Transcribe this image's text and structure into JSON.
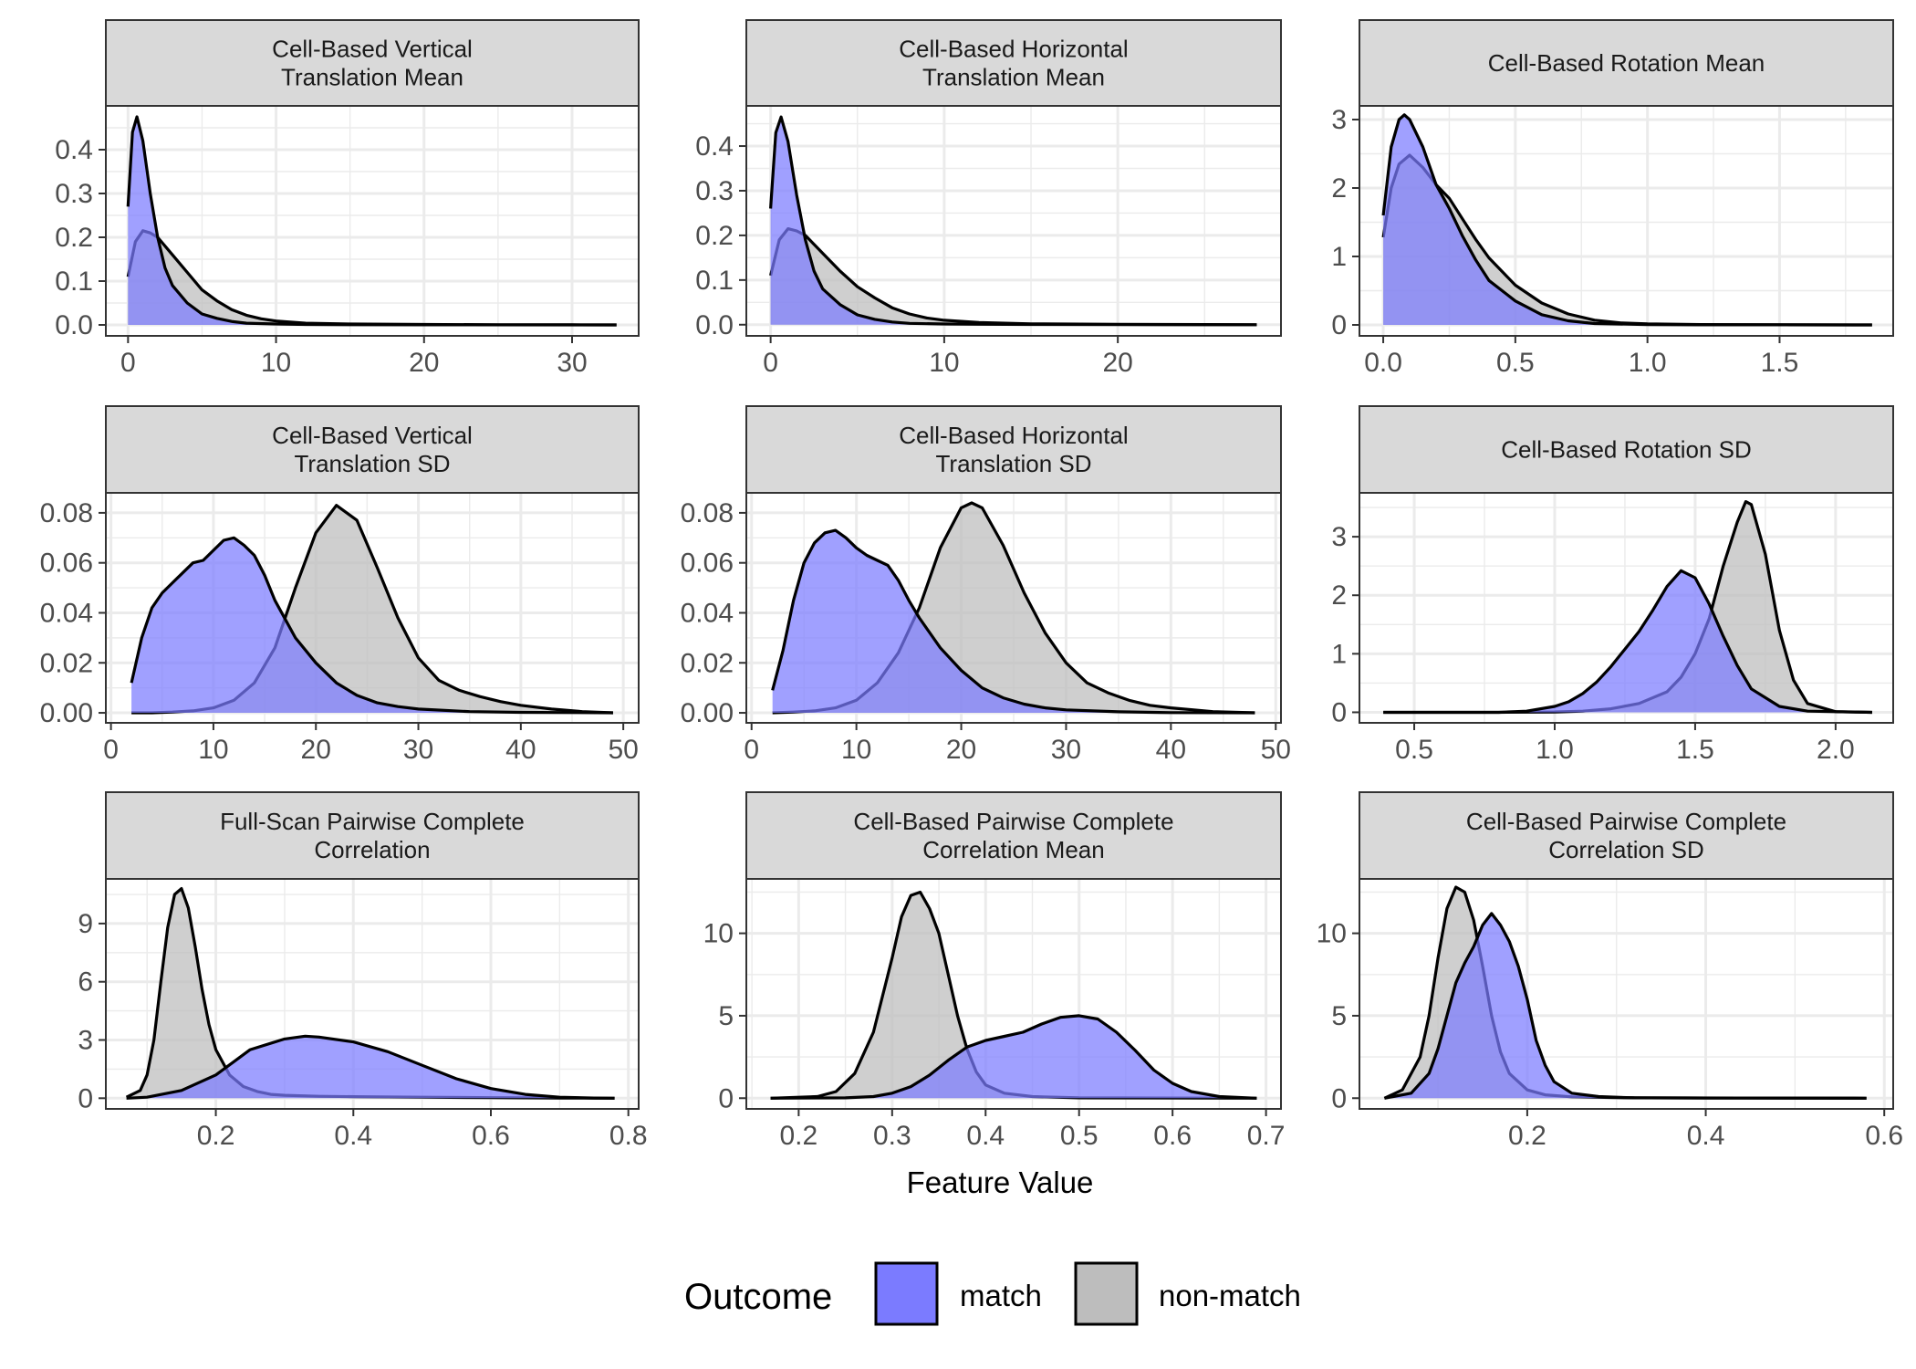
{
  "chart_data": [
    {
      "type": "area",
      "title": "Cell-Based Vertical\nTranslation Mean",
      "x_ticks": [
        0,
        10,
        20,
        30
      ],
      "y_ticks": [
        0.0,
        0.1,
        0.2,
        0.3,
        0.4
      ],
      "y_tick_labels": [
        "0.0",
        "0.1",
        "0.2",
        "0.3",
        "0.4"
      ],
      "xlim": [
        -1.5,
        34.5
      ],
      "ylim": [
        -0.025,
        0.5
      ],
      "series": [
        {
          "name": "non-match",
          "x": [
            0,
            0.5,
            1,
            1.5,
            2,
            3,
            4,
            5,
            6,
            7,
            8,
            9,
            10,
            12,
            15,
            20,
            25,
            30,
            33
          ],
          "y": [
            0.11,
            0.19,
            0.215,
            0.21,
            0.2,
            0.16,
            0.12,
            0.08,
            0.055,
            0.035,
            0.022,
            0.014,
            0.009,
            0.004,
            0.002,
            0.001,
            0.0005,
            0.0002,
            0
          ]
        },
        {
          "name": "match",
          "x": [
            0,
            0.3,
            0.6,
            1,
            1.5,
            2,
            2.5,
            3,
            4,
            5,
            6,
            7,
            8,
            10,
            12,
            15,
            20,
            33
          ],
          "y": [
            0.27,
            0.44,
            0.475,
            0.42,
            0.3,
            0.2,
            0.13,
            0.09,
            0.05,
            0.025,
            0.015,
            0.008,
            0.004,
            0.002,
            0.001,
            0.0005,
            0.0002,
            0
          ]
        }
      ]
    },
    {
      "type": "area",
      "title": "Cell-Based Horizontal\nTranslation Mean",
      "x_ticks": [
        0,
        10,
        20
      ],
      "y_ticks": [
        0.0,
        0.1,
        0.2,
        0.3,
        0.4
      ],
      "y_tick_labels": [
        "0.0",
        "0.1",
        "0.2",
        "0.3",
        "0.4"
      ],
      "xlim": [
        -1.4,
        29.4
      ],
      "ylim": [
        -0.025,
        0.49
      ],
      "series": [
        {
          "name": "non-match",
          "x": [
            0,
            0.5,
            1,
            1.5,
            2,
            3,
            4,
            5,
            6,
            7,
            8,
            9,
            10,
            12,
            15,
            20,
            25,
            28
          ],
          "y": [
            0.11,
            0.19,
            0.215,
            0.21,
            0.2,
            0.16,
            0.12,
            0.085,
            0.06,
            0.038,
            0.024,
            0.015,
            0.01,
            0.005,
            0.002,
            0.001,
            0.0003,
            0
          ]
        },
        {
          "name": "match",
          "x": [
            0,
            0.3,
            0.6,
            1,
            1.5,
            2,
            2.5,
            3,
            4,
            5,
            6,
            7,
            8,
            10,
            12,
            15,
            20,
            28
          ],
          "y": [
            0.26,
            0.43,
            0.465,
            0.41,
            0.29,
            0.19,
            0.12,
            0.08,
            0.045,
            0.022,
            0.012,
            0.006,
            0.003,
            0.0015,
            0.001,
            0.0005,
            0.0002,
            0
          ]
        }
      ]
    },
    {
      "type": "area",
      "title": "Cell-Based Rotation Mean",
      "x_ticks": [
        0.0,
        0.5,
        1.0,
        1.5
      ],
      "x_tick_labels": [
        "0.0",
        "0.5",
        "1.0",
        "1.5"
      ],
      "y_ticks": [
        0,
        1,
        2,
        3
      ],
      "xlim": [
        -0.09,
        1.93
      ],
      "ylim": [
        -0.16,
        3.2
      ],
      "series": [
        {
          "name": "non-match",
          "x": [
            0,
            0.03,
            0.06,
            0.1,
            0.15,
            0.2,
            0.25,
            0.3,
            0.35,
            0.4,
            0.5,
            0.6,
            0.7,
            0.8,
            0.9,
            1.0,
            1.2,
            1.5,
            1.85
          ],
          "y": [
            1.28,
            2.0,
            2.35,
            2.48,
            2.3,
            2.05,
            1.85,
            1.55,
            1.25,
            0.98,
            0.58,
            0.32,
            0.16,
            0.07,
            0.03,
            0.015,
            0.005,
            0.001,
            0
          ]
        },
        {
          "name": "match",
          "x": [
            0,
            0.03,
            0.06,
            0.08,
            0.1,
            0.15,
            0.2,
            0.25,
            0.3,
            0.35,
            0.4,
            0.5,
            0.6,
            0.7,
            0.8,
            1.0,
            1.2,
            1.5,
            1.85
          ],
          "y": [
            1.6,
            2.6,
            3.0,
            3.07,
            3.0,
            2.6,
            2.05,
            1.7,
            1.3,
            0.95,
            0.65,
            0.35,
            0.15,
            0.06,
            0.02,
            0.005,
            0.002,
            0.001,
            0
          ]
        }
      ]
    },
    {
      "type": "area",
      "title": "Cell-Based Vertical\nTranslation SD",
      "x_ticks": [
        0,
        10,
        20,
        30,
        40,
        50
      ],
      "y_ticks": [
        0.0,
        0.02,
        0.04,
        0.06,
        0.08
      ],
      "y_tick_labels": [
        "0.00",
        "0.02",
        "0.04",
        "0.06",
        "0.08"
      ],
      "xlim": [
        -0.5,
        51.5
      ],
      "ylim": [
        -0.004,
        0.088
      ],
      "series": [
        {
          "name": "non-match",
          "x": [
            2,
            4,
            6,
            8,
            10,
            12,
            14,
            16,
            18,
            20,
            22,
            24,
            26,
            28,
            30,
            32,
            34,
            36,
            38,
            40,
            43,
            46,
            49
          ],
          "y": [
            0,
            0,
            0.0003,
            0.0008,
            0.002,
            0.005,
            0.012,
            0.026,
            0.05,
            0.072,
            0.083,
            0.077,
            0.058,
            0.038,
            0.022,
            0.013,
            0.009,
            0.0065,
            0.0045,
            0.003,
            0.0015,
            0.0005,
            0
          ]
        },
        {
          "name": "match",
          "x": [
            2,
            3,
            4,
            5,
            6,
            7,
            8,
            9,
            10,
            11,
            12,
            13,
            14,
            15,
            16,
            18,
            20,
            22,
            24,
            26,
            28,
            30,
            35,
            40,
            49
          ],
          "y": [
            0.012,
            0.03,
            0.042,
            0.048,
            0.052,
            0.056,
            0.06,
            0.061,
            0.065,
            0.069,
            0.07,
            0.067,
            0.063,
            0.055,
            0.045,
            0.03,
            0.02,
            0.012,
            0.007,
            0.004,
            0.0025,
            0.0015,
            0.0005,
            0.0002,
            0
          ]
        }
      ]
    },
    {
      "type": "area",
      "title": "Cell-Based Horizontal\nTranslation SD",
      "x_ticks": [
        0,
        10,
        20,
        30,
        40,
        50
      ],
      "y_ticks": [
        0.0,
        0.02,
        0.04,
        0.06,
        0.08
      ],
      "y_tick_labels": [
        "0.00",
        "0.02",
        "0.04",
        "0.06",
        "0.08"
      ],
      "xlim": [
        -0.5,
        50.5
      ],
      "ylim": [
        -0.004,
        0.088
      ],
      "series": [
        {
          "name": "non-match",
          "x": [
            2,
            4,
            6,
            8,
            10,
            12,
            14,
            16,
            18,
            20,
            21,
            22,
            24,
            26,
            28,
            30,
            32,
            34,
            36,
            38,
            40,
            44,
            48
          ],
          "y": [
            0,
            0.0003,
            0.0008,
            0.002,
            0.005,
            0.012,
            0.024,
            0.042,
            0.066,
            0.082,
            0.084,
            0.082,
            0.067,
            0.048,
            0.032,
            0.02,
            0.012,
            0.008,
            0.005,
            0.003,
            0.002,
            0.0005,
            0
          ]
        },
        {
          "name": "match",
          "x": [
            2,
            3,
            4,
            5,
            6,
            7,
            8,
            9,
            10,
            11,
            12,
            13,
            14,
            15,
            16,
            18,
            20,
            22,
            24,
            26,
            28,
            30,
            35,
            40,
            48
          ],
          "y": [
            0.009,
            0.025,
            0.045,
            0.06,
            0.068,
            0.072,
            0.073,
            0.07,
            0.066,
            0.063,
            0.061,
            0.059,
            0.053,
            0.045,
            0.038,
            0.026,
            0.017,
            0.01,
            0.006,
            0.0035,
            0.002,
            0.0012,
            0.0004,
            0.0001,
            0
          ]
        }
      ]
    },
    {
      "type": "area",
      "title": "Cell-Based Rotation SD",
      "x_ticks": [
        0.5,
        1.0,
        1.5,
        2.0
      ],
      "x_tick_labels": [
        "0.5",
        "1.0",
        "1.5",
        "2.0"
      ],
      "y_ticks": [
        0,
        1,
        2,
        3
      ],
      "xlim": [
        0.305,
        2.205
      ],
      "ylim": [
        -0.18,
        3.75
      ],
      "series": [
        {
          "name": "non-match",
          "x": [
            0.39,
            0.8,
            1.0,
            1.1,
            1.2,
            1.3,
            1.4,
            1.45,
            1.5,
            1.55,
            1.6,
            1.65,
            1.68,
            1.7,
            1.75,
            1.8,
            1.85,
            1.9,
            2.0,
            2.13
          ],
          "y": [
            0,
            0,
            0.005,
            0.02,
            0.06,
            0.15,
            0.35,
            0.6,
            1.0,
            1.6,
            2.5,
            3.25,
            3.6,
            3.55,
            2.7,
            1.4,
            0.55,
            0.15,
            0.01,
            0
          ]
        },
        {
          "name": "match",
          "x": [
            0.39,
            0.8,
            0.9,
            1.0,
            1.05,
            1.1,
            1.15,
            1.2,
            1.25,
            1.3,
            1.35,
            1.4,
            1.45,
            1.5,
            1.55,
            1.6,
            1.65,
            1.7,
            1.8,
            1.9,
            2.13
          ],
          "y": [
            0,
            0,
            0.02,
            0.1,
            0.18,
            0.32,
            0.52,
            0.78,
            1.08,
            1.38,
            1.75,
            2.15,
            2.42,
            2.3,
            1.85,
            1.3,
            0.8,
            0.4,
            0.1,
            0.02,
            0
          ]
        }
      ]
    },
    {
      "type": "area",
      "title": "Full-Scan Pairwise Complete\nCorrelation",
      "x_ticks": [
        0.2,
        0.4,
        0.6,
        0.8
      ],
      "x_tick_labels": [
        "0.2",
        "0.4",
        "0.6",
        "0.8"
      ],
      "y_ticks": [
        0,
        3,
        6,
        9
      ],
      "xlim": [
        0.04,
        0.815
      ],
      "ylim": [
        -0.55,
        11.3
      ],
      "series": [
        {
          "name": "non-match",
          "x": [
            0.07,
            0.09,
            0.1,
            0.11,
            0.12,
            0.13,
            0.14,
            0.15,
            0.16,
            0.17,
            0.18,
            0.19,
            0.2,
            0.22,
            0.24,
            0.26,
            0.28,
            0.3,
            0.35,
            0.4,
            0.5,
            0.6,
            0.7,
            0.78
          ],
          "y": [
            0.05,
            0.4,
            1.2,
            3.0,
            6.0,
            8.8,
            10.5,
            10.8,
            9.8,
            7.8,
            5.6,
            3.8,
            2.5,
            1.2,
            0.6,
            0.35,
            0.2,
            0.15,
            0.1,
            0.08,
            0.05,
            0.03,
            0.01,
            0
          ]
        },
        {
          "name": "match",
          "x": [
            0.07,
            0.1,
            0.15,
            0.2,
            0.25,
            0.3,
            0.33,
            0.35,
            0.4,
            0.45,
            0.5,
            0.55,
            0.6,
            0.65,
            0.7,
            0.75,
            0.78
          ],
          "y": [
            0.0,
            0.05,
            0.4,
            1.2,
            2.5,
            3.05,
            3.2,
            3.15,
            2.9,
            2.4,
            1.7,
            1.0,
            0.5,
            0.2,
            0.05,
            0.01,
            0
          ]
        }
      ]
    },
    {
      "type": "area",
      "title": "Cell-Based Pairwise Complete\nCorrelation Mean",
      "x_ticks": [
        0.2,
        0.3,
        0.4,
        0.5,
        0.6,
        0.7
      ],
      "x_tick_labels": [
        "0.2",
        "0.3",
        "0.4",
        "0.5",
        "0.6",
        "0.7"
      ],
      "y_ticks": [
        0,
        5,
        10
      ],
      "xlim": [
        0.144,
        0.716
      ],
      "ylim": [
        -0.65,
        13.3
      ],
      "series": [
        {
          "name": "non-match",
          "x": [
            0.17,
            0.22,
            0.24,
            0.26,
            0.28,
            0.3,
            0.31,
            0.32,
            0.33,
            0.34,
            0.35,
            0.36,
            0.37,
            0.38,
            0.39,
            0.4,
            0.42,
            0.45,
            0.5,
            0.69
          ],
          "y": [
            0,
            0.1,
            0.4,
            1.5,
            4.0,
            8.5,
            11.0,
            12.3,
            12.5,
            11.5,
            10.0,
            7.5,
            5.0,
            3.0,
            1.6,
            0.8,
            0.3,
            0.1,
            0.02,
            0
          ]
        },
        {
          "name": "match",
          "x": [
            0.17,
            0.25,
            0.28,
            0.3,
            0.32,
            0.34,
            0.36,
            0.38,
            0.4,
            0.42,
            0.44,
            0.46,
            0.48,
            0.5,
            0.52,
            0.54,
            0.56,
            0.58,
            0.6,
            0.62,
            0.65,
            0.69
          ],
          "y": [
            0,
            0.02,
            0.1,
            0.3,
            0.7,
            1.4,
            2.3,
            3.1,
            3.5,
            3.75,
            4.0,
            4.5,
            4.9,
            5.0,
            4.8,
            4.0,
            2.9,
            1.7,
            0.9,
            0.4,
            0.1,
            0
          ]
        }
      ]
    },
    {
      "type": "area",
      "title": "Cell-Based Pairwise Complete\nCorrelation SD",
      "x_ticks": [
        0.2,
        0.4,
        0.6
      ],
      "x_tick_labels": [
        "0.2",
        "0.4",
        "0.6"
      ],
      "y_ticks": [
        0,
        5,
        10
      ],
      "xlim": [
        0.012,
        0.61
      ],
      "ylim": [
        -0.65,
        13.3
      ],
      "series": [
        {
          "name": "non-match",
          "x": [
            0.04,
            0.06,
            0.08,
            0.09,
            0.1,
            0.11,
            0.12,
            0.13,
            0.14,
            0.15,
            0.16,
            0.17,
            0.18,
            0.2,
            0.22,
            0.25,
            0.3,
            0.4,
            0.58
          ],
          "y": [
            0,
            0.5,
            2.5,
            5.0,
            8.5,
            11.5,
            12.8,
            12.5,
            10.8,
            8.0,
            5.0,
            2.8,
            1.5,
            0.5,
            0.2,
            0.08,
            0.03,
            0.01,
            0
          ]
        },
        {
          "name": "match",
          "x": [
            0.04,
            0.07,
            0.09,
            0.1,
            0.11,
            0.12,
            0.13,
            0.14,
            0.15,
            0.16,
            0.17,
            0.18,
            0.19,
            0.2,
            0.21,
            0.22,
            0.23,
            0.25,
            0.28,
            0.32,
            0.58
          ],
          "y": [
            0,
            0.3,
            1.5,
            3.0,
            5.0,
            7.0,
            8.2,
            9.2,
            10.5,
            11.2,
            10.5,
            9.5,
            8.0,
            6.0,
            3.5,
            2.0,
            1.0,
            0.3,
            0.1,
            0.02,
            0
          ]
        }
      ]
    }
  ],
  "xlabel": "Feature Value",
  "legend": {
    "title": "Outcome",
    "placement": "bottom",
    "items": [
      {
        "label": "match",
        "color": "#7b7bff"
      },
      {
        "label": "non-match",
        "color": "#bdbdbd"
      }
    ]
  },
  "colors": {
    "match": "#7b7bff",
    "non-match": "#bdbdbd",
    "strip_fill": "#d9d9d9",
    "grid": "#ebebeb"
  }
}
